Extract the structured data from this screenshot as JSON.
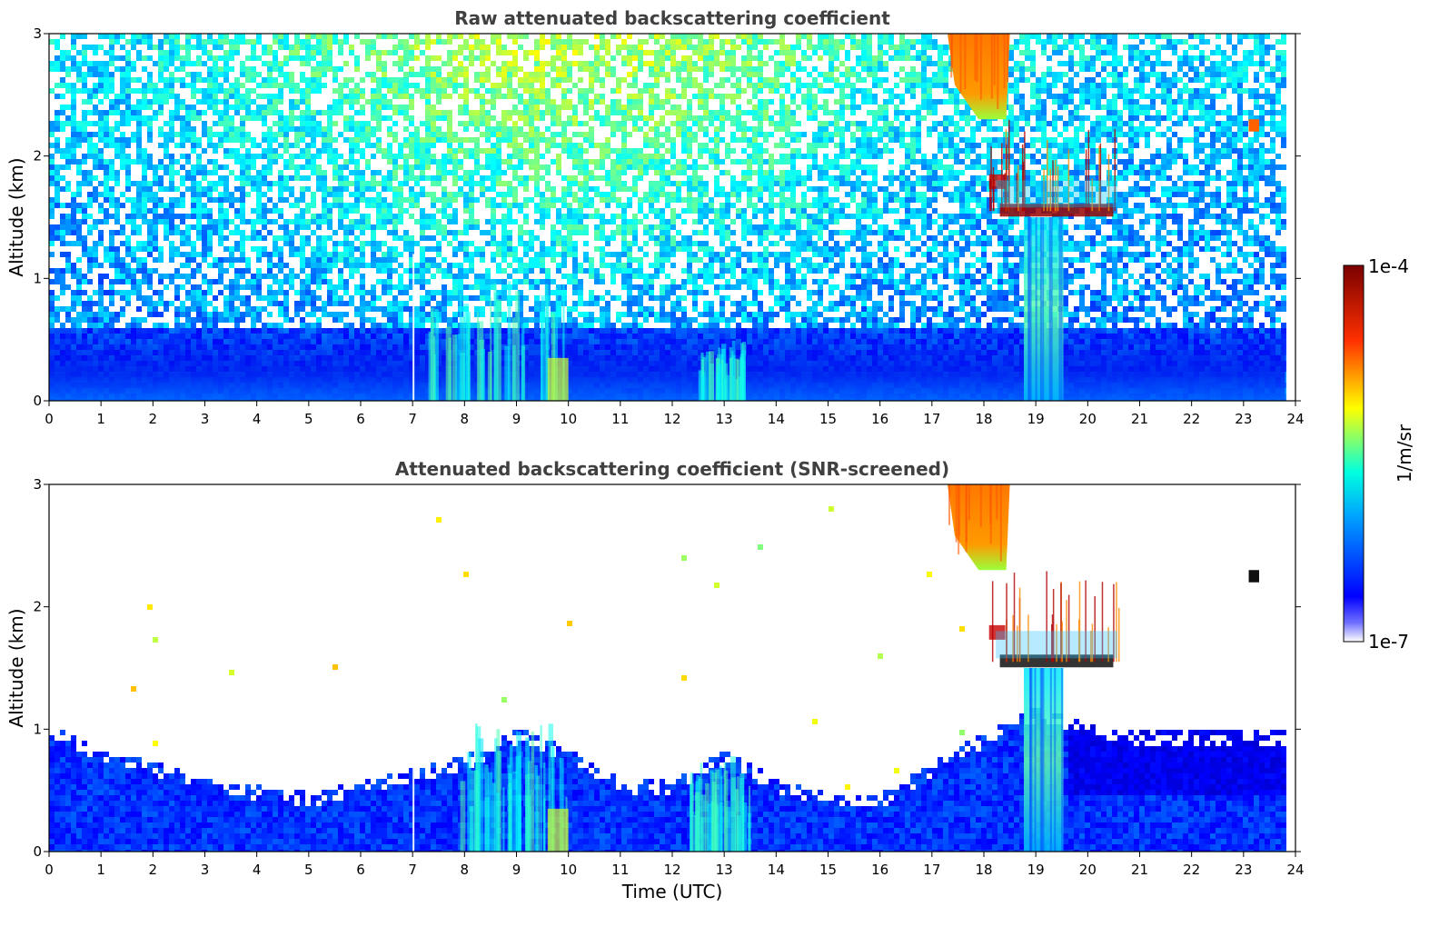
{
  "chart_data": [
    {
      "type": "heatmap",
      "title": "Raw attenuated backscattering coefficient",
      "xlabel": "",
      "ylabel": "Altitude (km)",
      "xlim": [
        0,
        24
      ],
      "ylim": [
        0,
        3
      ],
      "x_ticks": [
        "0",
        "1",
        "2",
        "3",
        "4",
        "5",
        "6",
        "7",
        "8",
        "9",
        "10",
        "11",
        "12",
        "13",
        "14",
        "15",
        "16",
        "17",
        "18",
        "19",
        "20",
        "21",
        "22",
        "23",
        "24"
      ],
      "y_ticks": [
        "0",
        "1",
        "2",
        "3"
      ],
      "snr_screened": false,
      "features": [
        {
          "kind": "boundary-layer",
          "x": [
            0,
            23.8
          ],
          "y": [
            0,
            0.6
          ]
        },
        {
          "kind": "aerosol-plume",
          "x": [
            7.3,
            10.0
          ],
          "y": [
            0,
            1.0
          ]
        },
        {
          "kind": "aerosol-plume",
          "x": [
            12.5,
            13.4
          ],
          "y": [
            0,
            0.5
          ]
        },
        {
          "kind": "ice-cloud",
          "x": [
            17.3,
            18.5
          ],
          "y": [
            2.3,
            3.0
          ]
        },
        {
          "kind": "liquid-cloud",
          "x": [
            18.1,
            20.7
          ],
          "y": [
            1.45,
            2.3
          ]
        },
        {
          "kind": "precipitation",
          "x": [
            18.7,
            19.6
          ],
          "y": [
            0,
            1.5
          ]
        },
        {
          "kind": "cloud",
          "x": [
            23.1,
            23.3
          ],
          "y": [
            2.2,
            2.3
          ]
        }
      ]
    },
    {
      "type": "heatmap",
      "title": "Attenuated backscattering coefficient (SNR-screened)",
      "xlabel": "Time (UTC)",
      "ylabel": "Altitude (km)",
      "xlim": [
        0,
        24
      ],
      "ylim": [
        0,
        3
      ],
      "x_ticks": [
        "0",
        "1",
        "2",
        "3",
        "4",
        "5",
        "6",
        "7",
        "8",
        "9",
        "10",
        "11",
        "12",
        "13",
        "14",
        "15",
        "16",
        "17",
        "18",
        "19",
        "20",
        "21",
        "22",
        "23",
        "24"
      ],
      "y_ticks": [
        "0",
        "1",
        "2",
        "3"
      ],
      "snr_screened": true,
      "boundary_layer_top_km": [
        [
          0,
          1.05
        ],
        [
          1,
          0.85
        ],
        [
          2,
          0.75
        ],
        [
          3,
          0.6
        ],
        [
          4,
          0.55
        ],
        [
          5,
          0.5
        ],
        [
          6,
          0.6
        ],
        [
          7,
          0.7
        ],
        [
          8,
          0.8
        ],
        [
          9,
          1.02
        ],
        [
          10,
          0.85
        ],
        [
          11,
          0.6
        ],
        [
          12,
          0.6
        ],
        [
          13,
          0.85
        ],
        [
          14,
          0.6
        ],
        [
          15,
          0.5
        ],
        [
          16,
          0.5
        ],
        [
          17,
          0.75
        ],
        [
          18,
          1.0
        ],
        [
          19,
          1.2
        ],
        [
          20,
          1.05
        ],
        [
          21,
          1.0
        ],
        [
          22,
          1.0
        ],
        [
          23,
          1.0
        ],
        [
          23.8,
          1.0
        ]
      ],
      "features": [
        {
          "kind": "aerosol-plume",
          "x": [
            7.8,
            10.0
          ],
          "y": [
            0,
            1.05
          ]
        },
        {
          "kind": "aerosol-plume",
          "x": [
            12.3,
            13.5
          ],
          "y": [
            0,
            0.8
          ]
        },
        {
          "kind": "ice-cloud",
          "x": [
            17.3,
            18.5
          ],
          "y": [
            2.3,
            3.0
          ]
        },
        {
          "kind": "liquid-cloud",
          "x": [
            18.1,
            20.7
          ],
          "y": [
            1.45,
            2.3
          ]
        },
        {
          "kind": "precipitation",
          "x": [
            18.7,
            19.6
          ],
          "y": [
            0,
            1.5
          ]
        },
        {
          "kind": "cloud",
          "x": [
            23.1,
            23.3
          ],
          "y": [
            2.2,
            2.3
          ]
        }
      ]
    }
  ],
  "colorbar": {
    "min_label": "1e-7",
    "max_label": "1e-4",
    "label": "1/m/sr",
    "min": 1e-07,
    "max": 0.0001,
    "scale": "log",
    "colormap": "jet",
    "colors": [
      "#ffffff",
      "#0000ff",
      "#00c8ff",
      "#ffff00",
      "#ff0000",
      "#800000"
    ]
  }
}
